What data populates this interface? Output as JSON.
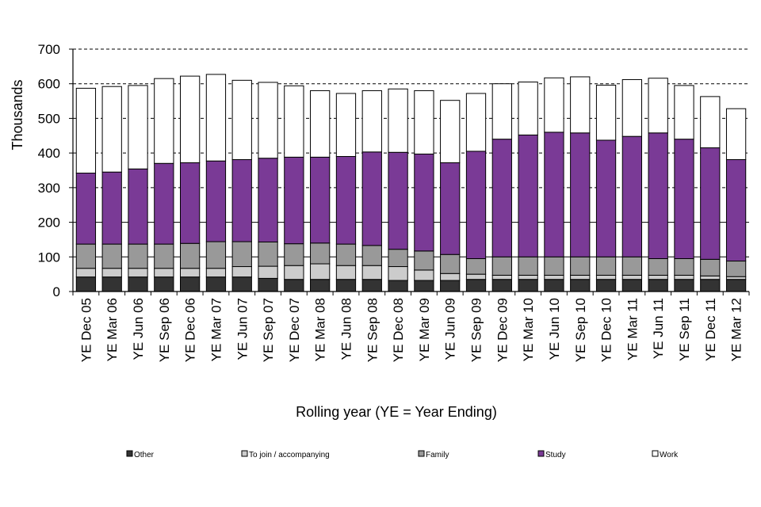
{
  "chart_data": {
    "type": "bar",
    "stacked": true,
    "ylabel": "Thousands",
    "xlabel": "Rolling year (YE = Year Ending)",
    "ylim": [
      0,
      700
    ],
    "yticks": [
      0,
      100,
      200,
      300,
      400,
      500,
      600,
      700
    ],
    "grid": "dashed horizontal at 100-unit intervals above 300, solid lines at 100 and 200",
    "legend_position": "bottom",
    "categories": [
      "YE Dec 05",
      "YE Mar 06",
      "YE Jun 06",
      "YE Sep 06",
      "YE Dec 06",
      "YE Mar 07",
      "YE Jun 07",
      "YE Sep 07",
      "YE Dec 07",
      "YE Mar 08",
      "YE Jun 08",
      "YE Sep 08",
      "YE Dec 08",
      "YE Mar 09",
      "YE Jun 09",
      "YE Sep 09",
      "YE Dec 09",
      "YE Mar 10",
      "YE Jun 10",
      "YE Sep 10",
      "YE Dec 10",
      "YE Mar 11",
      "YE Jun 11",
      "YE Sep 11",
      "YE Dec 11",
      "YE Mar 12"
    ],
    "series": [
      {
        "name": "Other",
        "color": "#333333",
        "values": [
          42,
          42,
          42,
          42,
          42,
          42,
          42,
          38,
          35,
          35,
          35,
          35,
          32,
          32,
          32,
          35,
          35,
          35,
          35,
          35,
          35,
          35,
          35,
          35,
          35,
          35
        ]
      },
      {
        "name": "To join / accompanying",
        "color": "#cccccc",
        "values": [
          25,
          25,
          25,
          25,
          25,
          25,
          30,
          35,
          40,
          45,
          40,
          40,
          40,
          30,
          20,
          15,
          12,
          12,
          12,
          12,
          12,
          12,
          12,
          12,
          10,
          8
        ]
      },
      {
        "name": "Family",
        "color": "#999999",
        "values": [
          70,
          70,
          70,
          70,
          72,
          77,
          72,
          70,
          63,
          60,
          62,
          58,
          50,
          55,
          55,
          45,
          53,
          53,
          53,
          53,
          53,
          53,
          48,
          48,
          48,
          45
        ]
      },
      {
        "name": "Study",
        "color": "#7a3a96",
        "values": [
          205,
          208,
          217,
          233,
          233,
          233,
          237,
          242,
          250,
          248,
          253,
          270,
          280,
          280,
          265,
          310,
          340,
          352,
          360,
          358,
          337,
          348,
          363,
          345,
          322,
          293
        ]
      },
      {
        "name": "Work",
        "color": "#ffffff",
        "values": [
          245,
          247,
          241,
          245,
          250,
          250,
          229,
          219,
          206,
          192,
          182,
          177,
          183,
          183,
          180,
          167,
          160,
          153,
          157,
          162,
          159,
          164,
          158,
          155,
          148,
          147
        ]
      }
    ]
  }
}
